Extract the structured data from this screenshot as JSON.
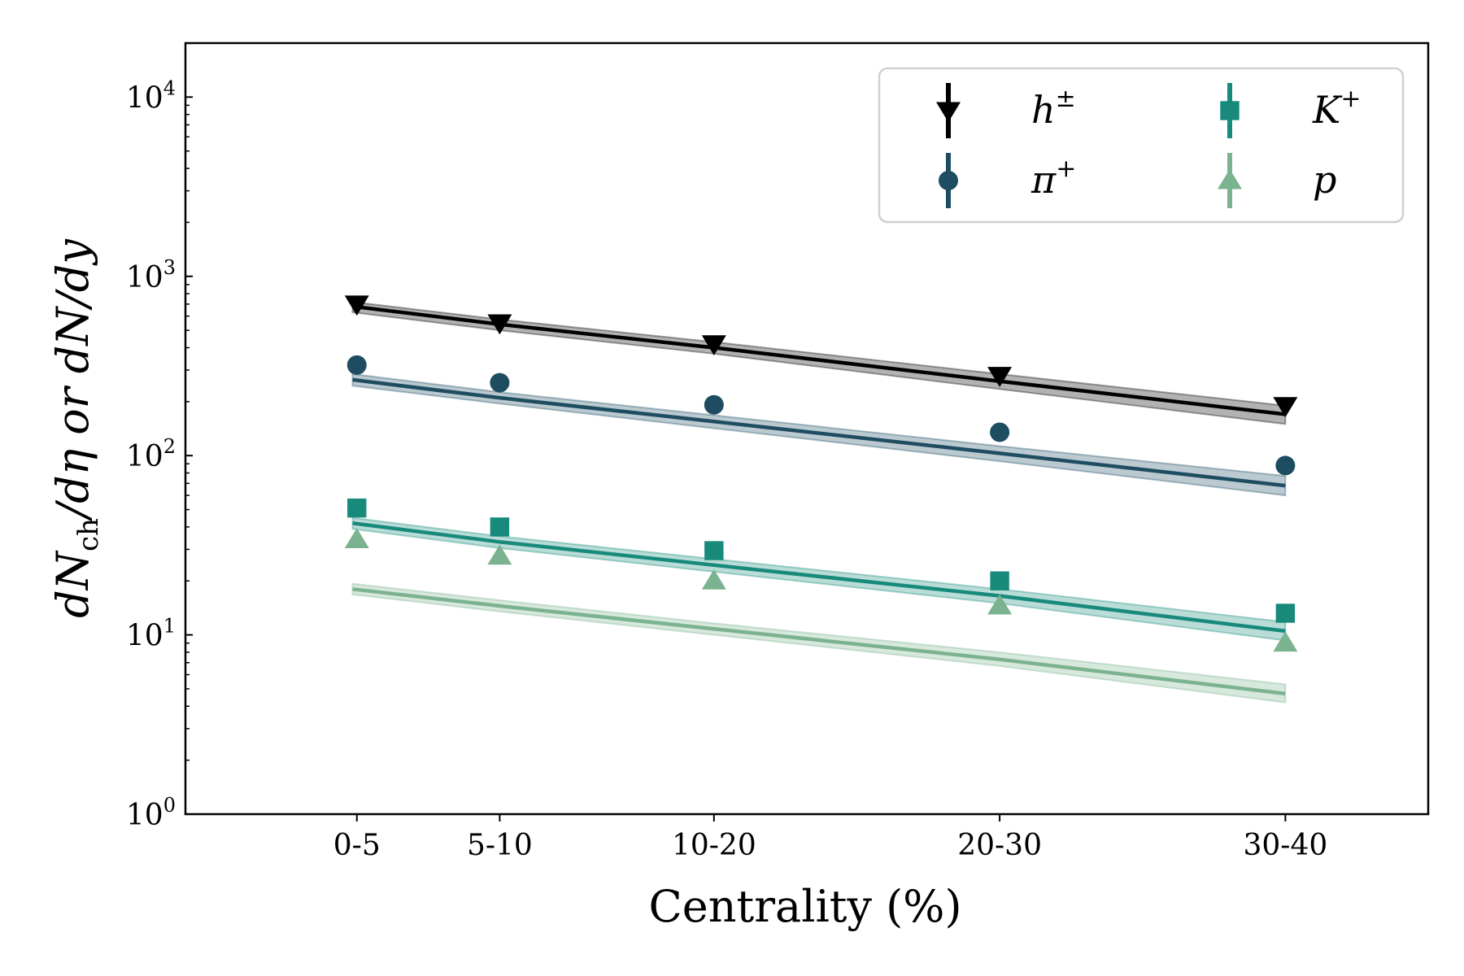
{
  "chart_data": {
    "type": "scatter",
    "xlabel": "Centrality (%)",
    "ylabel": "dNch/dη or dN/dy",
    "ylabel_parts": {
      "a": "dN",
      "a_sub": "ch",
      "b": "/dη or dN/dy"
    },
    "categories": [
      "0-5",
      "5-10",
      "10-20",
      "20-30",
      "30-40"
    ],
    "x": [
      2.5,
      7.5,
      15,
      25,
      35
    ],
    "xlim": [
      -3.5,
      40
    ],
    "ylim": [
      1,
      20000
    ],
    "yscale": "log",
    "yticks": [
      {
        "base": "10",
        "exp": "0",
        "value": 1
      },
      {
        "base": "10",
        "exp": "1",
        "value": 10
      },
      {
        "base": "10",
        "exp": "2",
        "value": 100
      },
      {
        "base": "10",
        "exp": "3",
        "value": 1000
      },
      {
        "base": "10",
        "exp": "4",
        "value": 10000
      }
    ],
    "grid": false,
    "legend": {
      "position": "top-right",
      "columns": 2
    },
    "series": [
      {
        "name": "h±",
        "name_base": "h",
        "name_sup": "±",
        "color": "#000000",
        "marker": "triangle-down",
        "values": [
          700,
          550,
          420,
          280,
          190
        ],
        "model": [
          680,
          540,
          400,
          260,
          170
        ],
        "band": [
          [
            630,
            720
          ],
          [
            500,
            575
          ],
          [
            370,
            430
          ],
          [
            235,
            285
          ],
          [
            150,
            190
          ]
        ]
      },
      {
        "name": "π+",
        "name_base": "π",
        "name_sup": "+",
        "color": "#1e4d62",
        "marker": "circle",
        "values": [
          320,
          255,
          192,
          135,
          88
        ],
        "model": [
          265,
          210,
          155,
          103,
          68
        ],
        "band": [
          [
            245,
            285
          ],
          [
            195,
            226
          ],
          [
            142,
            168
          ],
          [
            93,
            113
          ],
          [
            60,
            77
          ]
        ]
      },
      {
        "name": "K+",
        "name_base": "K",
        "name_sup": "+",
        "color": "#178a7c",
        "marker": "square",
        "values": [
          51,
          40,
          29.5,
          20,
          13.2
        ],
        "model": [
          42,
          33,
          24.5,
          16.5,
          10.5
        ],
        "band": [
          [
            39,
            45
          ],
          [
            30.5,
            35.5
          ],
          [
            22.5,
            26.5
          ],
          [
            15,
            18
          ],
          [
            9.3,
            11.8
          ]
        ]
      },
      {
        "name": "p",
        "name_base": "p",
        "name_sup": "",
        "color": "#7bb390",
        "marker": "triangle-up",
        "values": [
          34,
          27.5,
          20,
          14.5,
          9
        ],
        "model": [
          18,
          14.5,
          10.8,
          7.3,
          4.7
        ],
        "band": [
          [
            16.8,
            19.3
          ],
          [
            13.5,
            15.6
          ],
          [
            10,
            11.6
          ],
          [
            6.7,
            8
          ],
          [
            4.2,
            5.3
          ]
        ]
      }
    ]
  }
}
